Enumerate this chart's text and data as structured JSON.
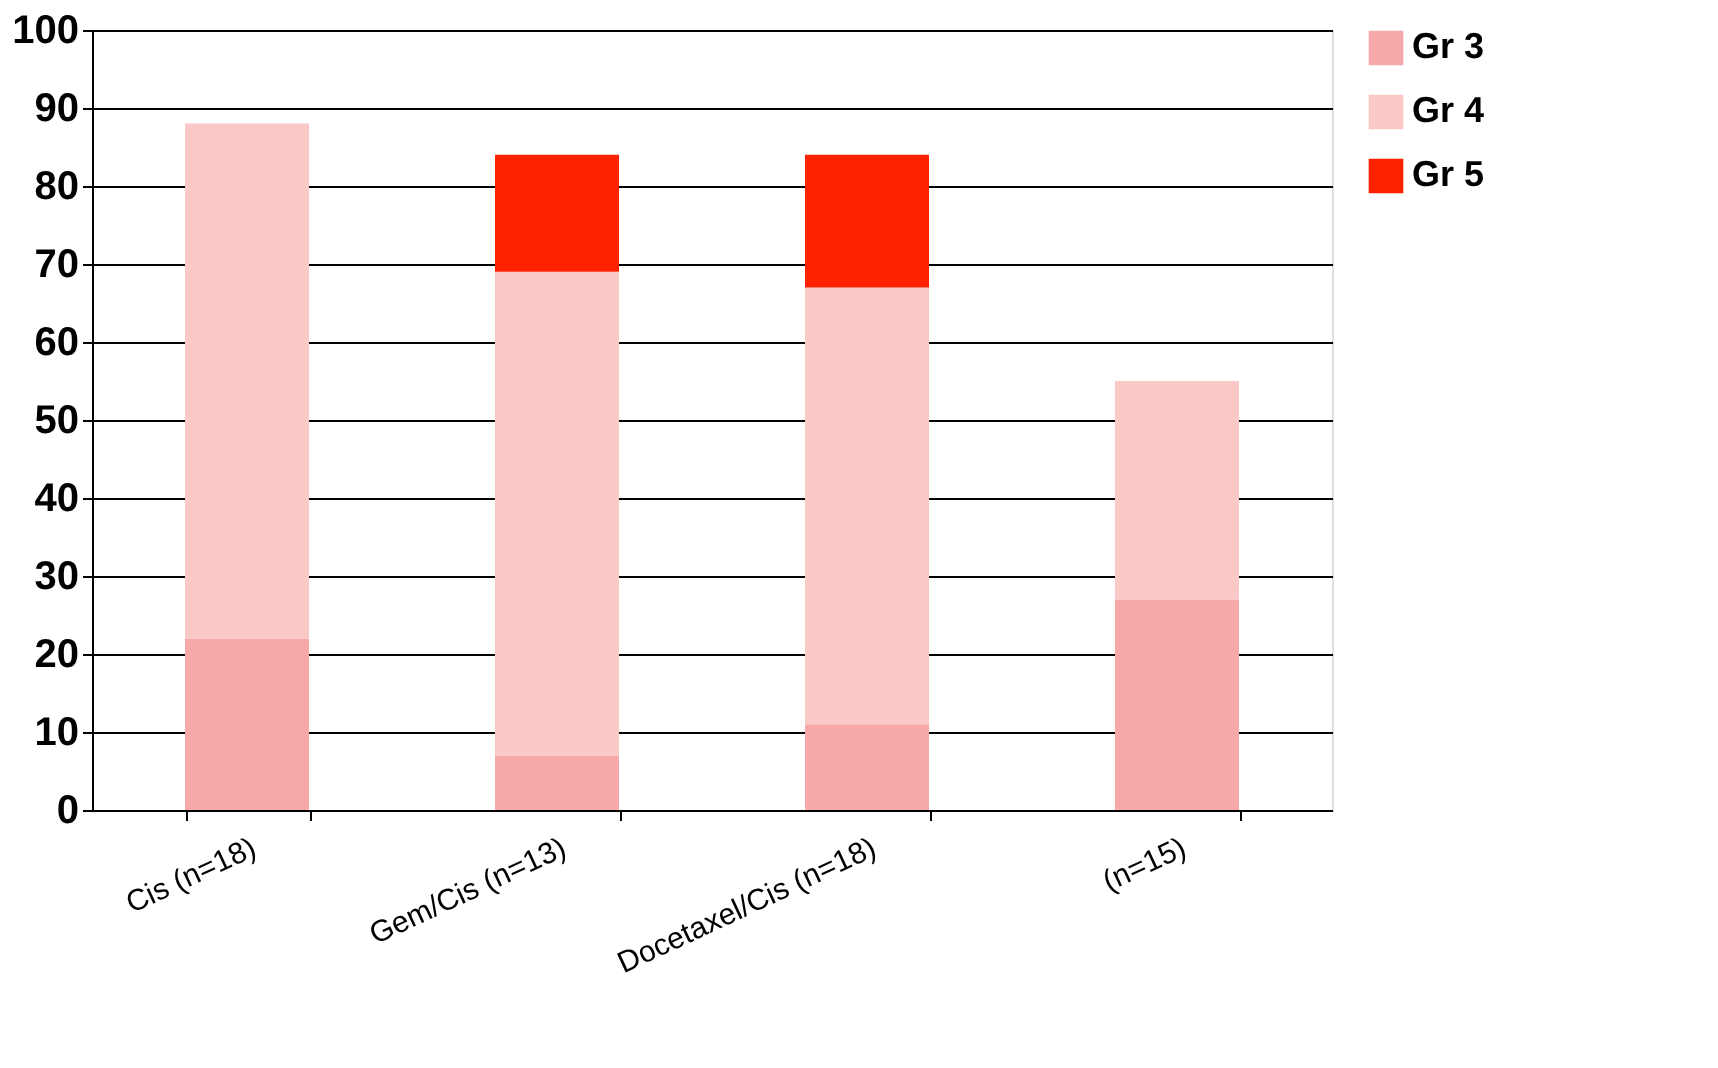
{
  "chart_data": {
    "type": "bar",
    "stacked": true,
    "categories": [
      "Cis (n=18)",
      "Gem/Cis (n=13)",
      "Docetaxel/Cis (n=18)",
      "(n=15)"
    ],
    "series": [
      {
        "name": "Gr 3",
        "color": "#f7a8a8",
        "values": [
          22,
          7,
          11,
          27
        ]
      },
      {
        "name": "Gr 4",
        "color": "#fbc8c8",
        "values": [
          66,
          62,
          56,
          28
        ]
      },
      {
        "name": "Gr 5",
        "color": "#ff2200",
        "values": [
          null,
          15,
          17,
          null
        ]
      }
    ],
    "ylim": [
      0,
      100
    ],
    "yticks": [
      0,
      10,
      20,
      30,
      40,
      50,
      60,
      70,
      80,
      90,
      100
    ],
    "grid": "y",
    "legend": "right"
  }
}
